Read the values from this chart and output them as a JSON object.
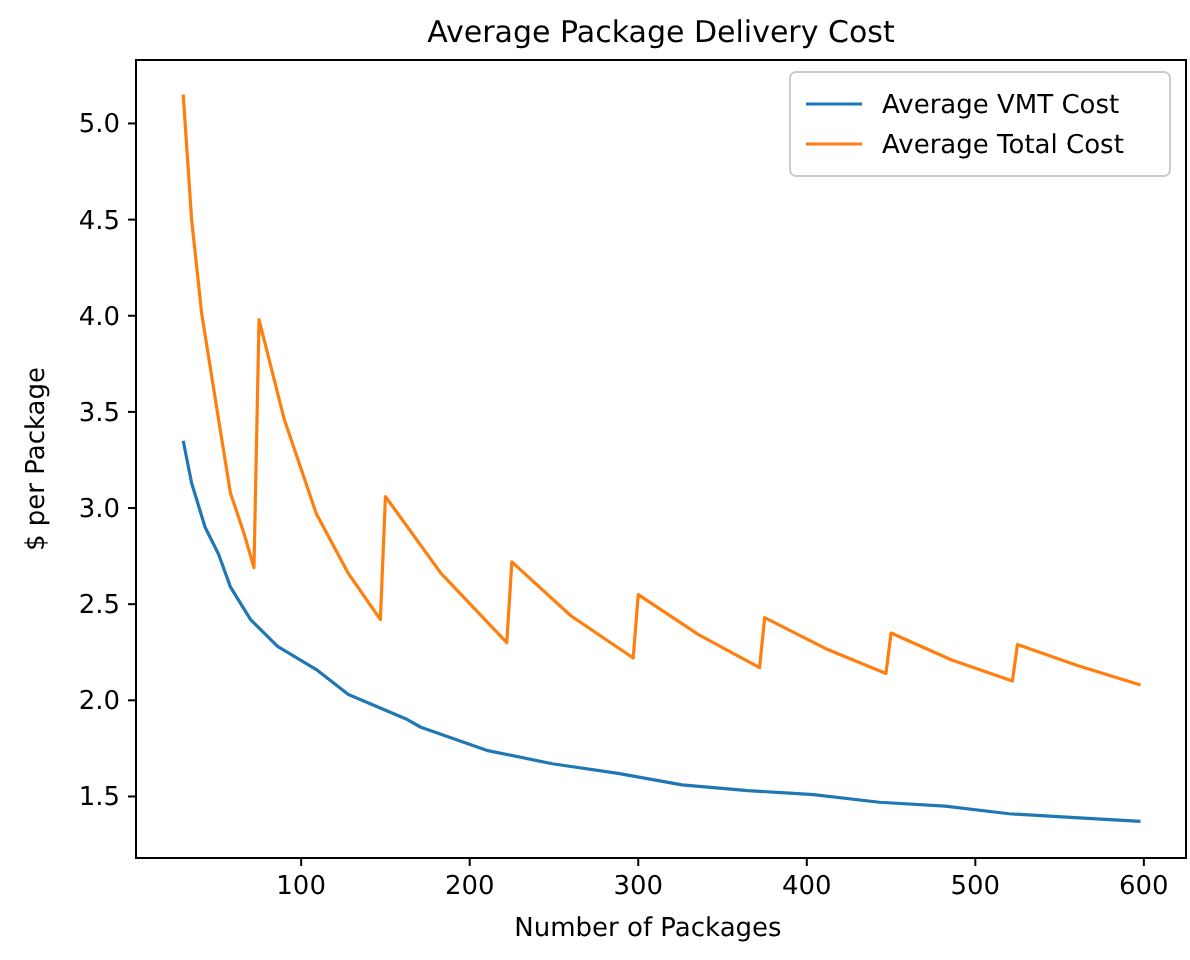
{
  "chart_data": {
    "type": "line",
    "title": "Average Package Delivery Cost",
    "xlabel": "Number of Packages",
    "ylabel": "$ per Package",
    "xlim": [
      2,
      625
    ],
    "ylim": [
      1.18,
      5.33
    ],
    "xticks": [
      100,
      200,
      300,
      400,
      500,
      600
    ],
    "yticks": [
      1.5,
      {
        "value": 2,
        "label": "2.0"
      },
      2.5,
      {
        "value": 3,
        "label": "3.0"
      },
      3.5,
      {
        "value": 4,
        "label": "4.0"
      },
      4.5,
      {
        "value": 5,
        "label": "5.0"
      }
    ],
    "legend": "top right",
    "grid": false,
    "series": [
      {
        "name": "Average VMT Cost",
        "color": "#1f77b4",
        "x": [
          30,
          35,
          43,
          51,
          58,
          70,
          86,
          109,
          128,
          163,
          171,
          210,
          249,
          288,
          326,
          365,
          385,
          404,
          443,
          482,
          520,
          559,
          598
        ],
        "values": [
          3.35,
          3.13,
          2.9,
          2.76,
          2.59,
          2.42,
          2.28,
          2.16,
          2.03,
          1.9,
          1.86,
          1.74,
          1.67,
          1.62,
          1.56,
          1.53,
          1.52,
          1.51,
          1.47,
          1.45,
          1.41,
          1.39,
          1.37
        ]
      },
      {
        "name": "Average Total Cost",
        "color": "#ff7f0e",
        "x": [
          30,
          35,
          41,
          51,
          58,
          66,
          72,
          75,
          90,
          109,
          128,
          147,
          150,
          183,
          222,
          225,
          260,
          297,
          300,
          336,
          372,
          375,
          411,
          447,
          450,
          486,
          522,
          525,
          561,
          598
        ],
        "values": [
          5.15,
          4.5,
          4.01,
          3.46,
          3.08,
          2.87,
          2.69,
          3.98,
          3.46,
          2.97,
          2.66,
          2.42,
          3.06,
          2.66,
          2.3,
          2.72,
          2.44,
          2.22,
          2.55,
          2.34,
          2.17,
          2.43,
          2.27,
          2.14,
          2.35,
          2.21,
          2.1,
          2.29,
          2.18,
          2.08
        ]
      }
    ]
  }
}
